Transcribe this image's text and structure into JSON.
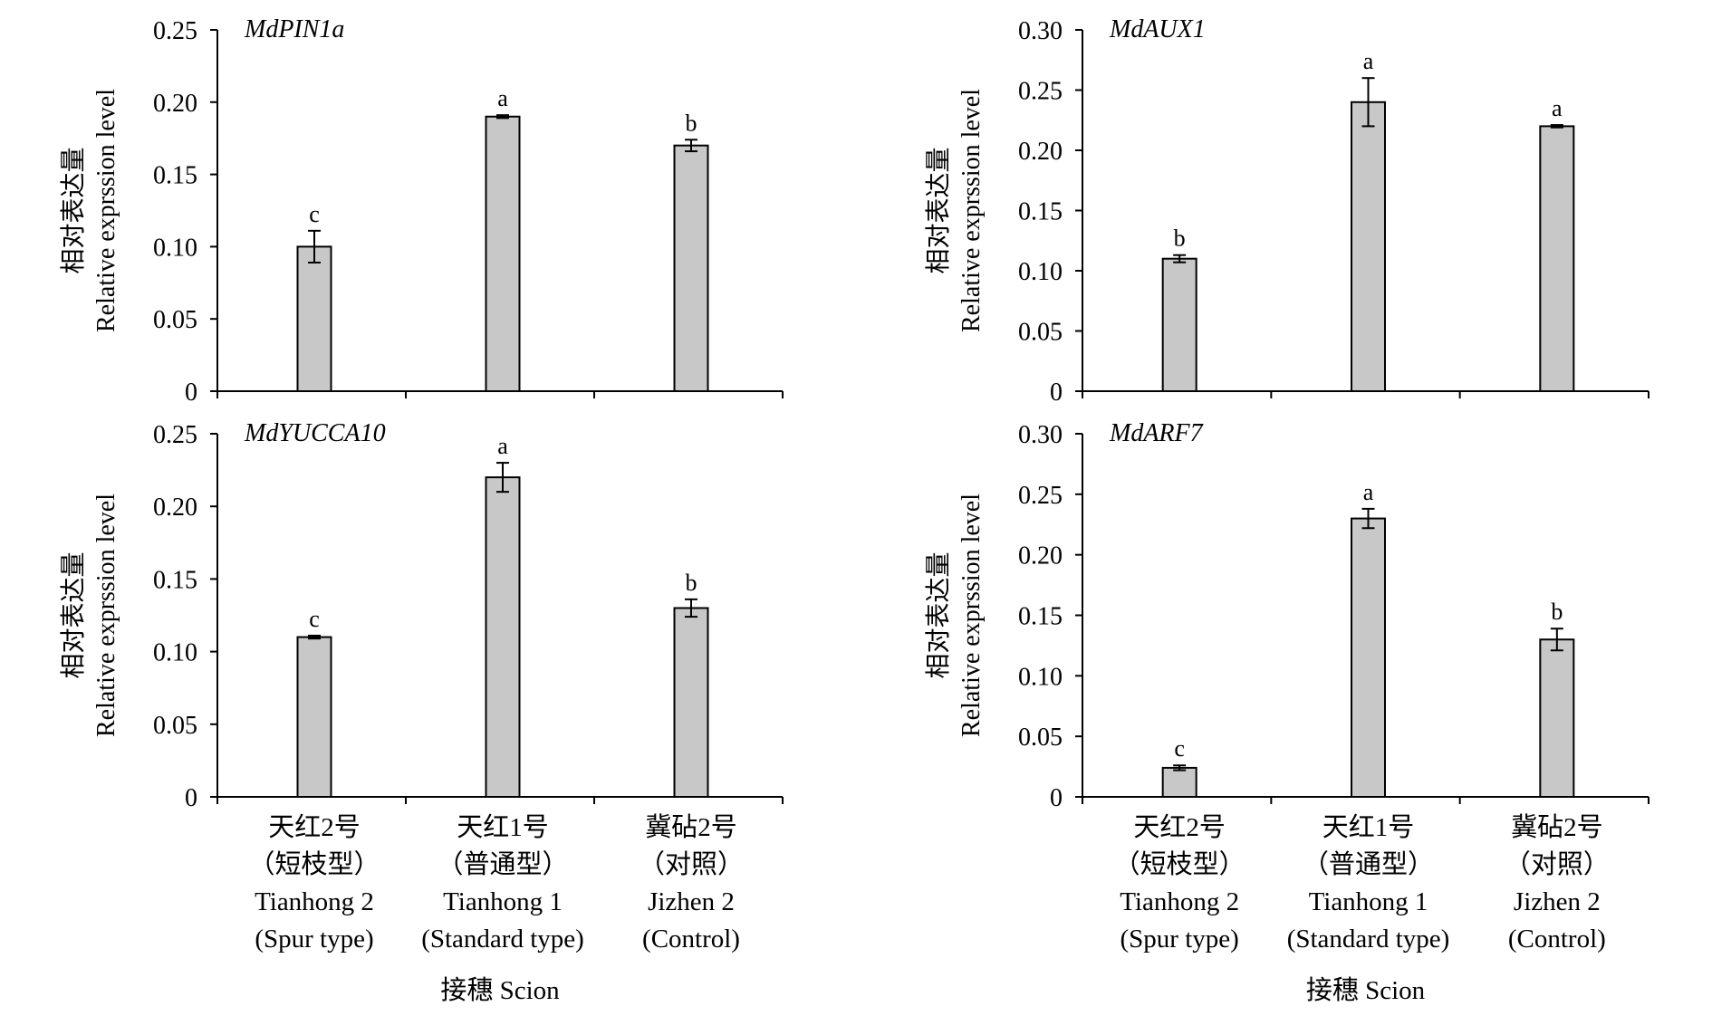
{
  "chart_data": [
    {
      "type": "bar",
      "title": "MdPIN1a",
      "ylabel_zh": "相对表达量",
      "ylabel_en": "Relative exprssion level",
      "xlabel": "",
      "categories": [
        "Tianhong 2 (Spur type)",
        "Tianhong 1 (Standard type)",
        "Jizhen 2 (Control)"
      ],
      "values": [
        0.1,
        0.19,
        0.17
      ],
      "errors": [
        0.011,
        0.001,
        0.004
      ],
      "significance": [
        "c",
        "a",
        "b"
      ],
      "ylim": [
        0,
        0.25
      ],
      "yticks": [
        0,
        0.05,
        0.1,
        0.15,
        0.2,
        0.25
      ],
      "ytick_labels": [
        "0",
        "0.05",
        "0.10",
        "0.15",
        "0.20",
        "0.25"
      ],
      "bar_color": "#c8c8c8",
      "grid": false
    },
    {
      "type": "bar",
      "title": "MdAUX1",
      "ylabel_zh": "相对表达量",
      "ylabel_en": "Relative exprssion level",
      "xlabel": "",
      "categories": [
        "Tianhong 2 (Spur type)",
        "Tianhong 1 (Standard type)",
        "Jizhen 2 (Control)"
      ],
      "values": [
        0.11,
        0.24,
        0.22
      ],
      "errors": [
        0.003,
        0.02,
        0.001
      ],
      "significance": [
        "b",
        "a",
        "a"
      ],
      "ylim": [
        0,
        0.3
      ],
      "yticks": [
        0,
        0.05,
        0.1,
        0.15,
        0.2,
        0.25,
        0.3
      ],
      "ytick_labels": [
        "0",
        "0.05",
        "0.10",
        "0.15",
        "0.20",
        "0.25",
        "0.30"
      ],
      "bar_color": "#c8c8c8",
      "grid": false
    },
    {
      "type": "bar",
      "title": "MdYUCCA10",
      "ylabel_zh": "相对表达量",
      "ylabel_en": "Relative exprssion level",
      "xlabel": "接穗 Scion",
      "categories": [
        "Tianhong 2 (Spur type)",
        "Tianhong 1 (Standard type)",
        "Jizhen 2 (Control)"
      ],
      "values": [
        0.11,
        0.22,
        0.13
      ],
      "errors": [
        0.001,
        0.01,
        0.006
      ],
      "significance": [
        "c",
        "a",
        "b"
      ],
      "ylim": [
        0,
        0.25
      ],
      "yticks": [
        0,
        0.05,
        0.1,
        0.15,
        0.2,
        0.25
      ],
      "ytick_labels": [
        "0",
        "0.05",
        "0.10",
        "0.15",
        "0.20",
        "0.25"
      ],
      "bar_color": "#c8c8c8",
      "grid": false
    },
    {
      "type": "bar",
      "title": "MdARF7",
      "ylabel_zh": "相对表达量",
      "ylabel_en": "Relative exprssion level",
      "xlabel": "接穗 Scion",
      "categories": [
        "Tianhong 2 (Spur type)",
        "Tianhong 1 (Standard type)",
        "Jizhen 2 (Control)"
      ],
      "values": [
        0.024,
        0.23,
        0.13
      ],
      "errors": [
        0.002,
        0.008,
        0.009
      ],
      "significance": [
        "c",
        "a",
        "b"
      ],
      "ylim": [
        0,
        0.3
      ],
      "yticks": [
        0,
        0.05,
        0.1,
        0.15,
        0.2,
        0.25,
        0.3
      ],
      "ytick_labels": [
        "0",
        "0.05",
        "0.10",
        "0.15",
        "0.20",
        "0.25",
        "0.30"
      ],
      "bar_color": "#c8c8c8",
      "grid": false
    }
  ],
  "category_labels": [
    [
      "天红2号",
      "（短枝型）",
      "Tianhong 2",
      "(Spur type)"
    ],
    [
      "天红1号",
      "（普通型）",
      "Tianhong 1",
      "(Standard type)"
    ],
    [
      "冀砧2号",
      "（对照）",
      "Jizhen 2",
      "(Control)"
    ]
  ]
}
